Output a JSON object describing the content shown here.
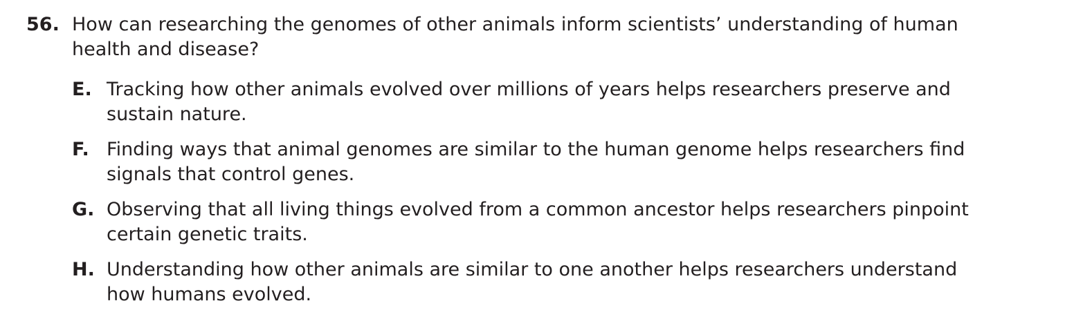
{
  "question": {
    "number": "56.",
    "text_line1": "How can researching the genomes of other animals inform scientists’ understanding of human",
    "text_line2": "health and disease?"
  },
  "choices": [
    {
      "letter": "E.",
      "line1": "Tracking how other animals evolved over millions of years helps researchers preserve and",
      "line2": "sustain nature."
    },
    {
      "letter": "F.",
      "line1": "Finding ways that animal genomes are similar to the human genome helps researchers find",
      "line2": "signals that control genes."
    },
    {
      "letter": "G.",
      "line1": "Observing that all living things evolved from a common ancestor helps researchers pinpoint",
      "line2": "certain genetic traits."
    },
    {
      "letter": "H.",
      "line1": "Understanding how other animals are similar to one another helps researchers understand",
      "line2": "how humans evolved."
    }
  ]
}
